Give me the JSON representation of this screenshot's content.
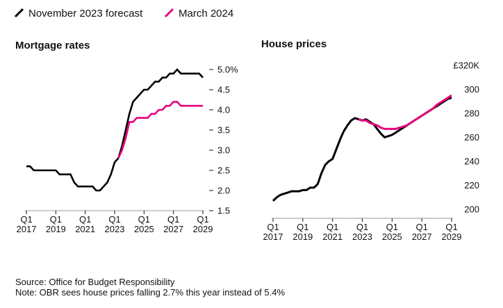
{
  "legend": {
    "items": [
      {
        "label": "November 2023 forecast",
        "color": "#000000"
      },
      {
        "label": "March 2024",
        "color": "#e6007e"
      }
    ]
  },
  "chart_data": [
    {
      "type": "line",
      "title": "Mortgage rates",
      "xlabel": "",
      "ylabel": "",
      "x_ticks": [
        "Q1 2017",
        "Q1 2019",
        "Q1 2021",
        "Q1 2023",
        "Q1 2025",
        "Q1 2027",
        "Q1 2029"
      ],
      "y_ticks": [
        "1.5",
        "2.0",
        "2.5",
        "3.0",
        "3.5",
        "4.0",
        "4.5",
        "5.0%"
      ],
      "xlim": [
        2017.0,
        2029.0
      ],
      "ylim": [
        1.5,
        5.0
      ],
      "axis_side": "right",
      "grid": false,
      "series": [
        {
          "name": "November 2023 forecast",
          "color": "#000000",
          "x": [
            2017.0,
            2017.25,
            2017.5,
            2017.75,
            2018.0,
            2018.25,
            2018.5,
            2018.75,
            2019.0,
            2019.25,
            2019.5,
            2019.75,
            2020.0,
            2020.25,
            2020.5,
            2020.75,
            2021.0,
            2021.25,
            2021.5,
            2021.75,
            2022.0,
            2022.25,
            2022.5,
            2022.75,
            2023.0,
            2023.25,
            2023.5,
            2023.75,
            2024.0,
            2024.25,
            2024.5,
            2024.75,
            2025.0,
            2025.25,
            2025.5,
            2025.75,
            2026.0,
            2026.25,
            2026.5,
            2026.75,
            2027.0,
            2027.25,
            2027.5,
            2027.75,
            2028.0,
            2028.25,
            2028.5,
            2028.75,
            2029.0
          ],
          "values": [
            2.6,
            2.6,
            2.5,
            2.5,
            2.5,
            2.5,
            2.5,
            2.5,
            2.5,
            2.4,
            2.4,
            2.4,
            2.4,
            2.2,
            2.1,
            2.1,
            2.1,
            2.1,
            2.1,
            2.0,
            2.0,
            2.1,
            2.2,
            2.4,
            2.7,
            2.8,
            3.1,
            3.5,
            3.9,
            4.2,
            4.3,
            4.4,
            4.5,
            4.5,
            4.6,
            4.7,
            4.7,
            4.8,
            4.8,
            4.9,
            4.9,
            5.0,
            4.9,
            4.9,
            4.9,
            4.9,
            4.9,
            4.9,
            4.8
          ]
        },
        {
          "name": "March 2024",
          "color": "#e6007e",
          "x": [
            2023.25,
            2023.5,
            2023.75,
            2024.0,
            2024.25,
            2024.5,
            2024.75,
            2025.0,
            2025.25,
            2025.5,
            2025.75,
            2026.0,
            2026.25,
            2026.5,
            2026.75,
            2027.0,
            2027.25,
            2027.5,
            2027.75,
            2028.0,
            2028.25,
            2028.5,
            2028.75,
            2029.0
          ],
          "values": [
            2.8,
            3.0,
            3.3,
            3.7,
            3.7,
            3.8,
            3.8,
            3.8,
            3.8,
            3.9,
            3.9,
            4.0,
            4.0,
            4.1,
            4.1,
            4.2,
            4.2,
            4.1,
            4.1,
            4.1,
            4.1,
            4.1,
            4.1,
            4.1
          ]
        }
      ]
    },
    {
      "type": "line",
      "title": "House prices",
      "xlabel": "",
      "ylabel": "",
      "x_ticks": [
        "Q1 2017",
        "Q1 2019",
        "Q1 2021",
        "Q1 2023",
        "Q1 2025",
        "Q1 2027",
        "Q1 2029"
      ],
      "y_ticks": [
        "200",
        "220",
        "240",
        "260",
        "280",
        "300",
        "£320K"
      ],
      "xlim": [
        2017.0,
        2029.0
      ],
      "ylim": [
        200,
        320
      ],
      "axis_side": "right",
      "grid": false,
      "series": [
        {
          "name": "November 2023 forecast",
          "color": "#000000",
          "x": [
            2017.0,
            2017.25,
            2017.5,
            2017.75,
            2018.0,
            2018.25,
            2018.5,
            2018.75,
            2019.0,
            2019.25,
            2019.5,
            2019.75,
            2020.0,
            2020.25,
            2020.5,
            2020.75,
            2021.0,
            2021.25,
            2021.5,
            2021.75,
            2022.0,
            2022.25,
            2022.5,
            2022.75,
            2023.0,
            2023.25,
            2023.5,
            2023.75,
            2024.0,
            2024.25,
            2024.5,
            2024.75,
            2025.0,
            2025.25,
            2025.5,
            2025.75,
            2026.0,
            2026.25,
            2026.5,
            2026.75,
            2027.0,
            2027.25,
            2027.5,
            2027.75,
            2028.0,
            2028.25,
            2028.5,
            2028.75,
            2029.0
          ],
          "values": [
            207,
            210,
            212,
            213,
            214,
            215,
            215,
            215,
            216,
            216,
            218,
            218,
            221,
            230,
            237,
            240,
            242,
            250,
            258,
            265,
            270,
            274,
            276,
            275,
            274,
            275,
            273,
            271,
            267,
            263,
            260,
            261,
            262,
            264,
            266,
            268,
            270,
            272,
            274,
            276,
            278,
            280,
            282,
            284,
            286,
            288,
            290,
            292,
            293
          ]
        },
        {
          "name": "March 2024",
          "color": "#e6007e",
          "x": [
            2022.75,
            2023.0,
            2023.25,
            2023.5,
            2023.75,
            2024.0,
            2024.25,
            2024.5,
            2024.75,
            2025.0,
            2025.25,
            2025.5,
            2025.75,
            2026.0,
            2026.25,
            2026.5,
            2026.75,
            2027.0,
            2027.25,
            2027.5,
            2027.75,
            2028.0,
            2028.25,
            2028.5,
            2028.75,
            2029.0
          ],
          "values": [
            275,
            274,
            274,
            272,
            271,
            270,
            268,
            267,
            267,
            267,
            267,
            268,
            269,
            270,
            272,
            274,
            276,
            278,
            280,
            282,
            284,
            287,
            289,
            291,
            293,
            295
          ]
        }
      ]
    }
  ],
  "footer": {
    "source": "Source: Office for Budget Responsibility",
    "note": "Note: OBR sees house prices falling 2.7% this year instead of 5.4%"
  }
}
